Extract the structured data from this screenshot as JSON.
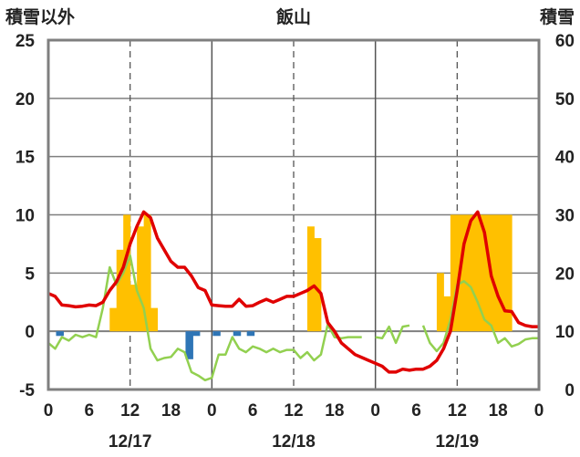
{
  "chart_data": {
    "type": "bar+line",
    "title": "飯山",
    "left_axis_label": "積雪以外",
    "right_axis_label": "積雪",
    "left_ylim": [
      -5,
      25
    ],
    "left_yticks": [
      -5,
      0,
      5,
      10,
      15,
      20,
      25
    ],
    "right_ylim": [
      0,
      60
    ],
    "right_yticks": [
      0,
      10,
      20,
      30,
      40,
      50,
      60
    ],
    "x_range_hours": [
      0,
      72
    ],
    "x_tick_labels": [
      "0",
      "6",
      "12",
      "18",
      "0",
      "6",
      "12",
      "18",
      "0",
      "6",
      "12",
      "18",
      "0"
    ],
    "day_labels": [
      "12/17",
      "12/18",
      "12/19"
    ],
    "grid": "dashed vertical lines at 12h, solid vertical lines at day boundaries, horizontal gridlines",
    "precip_bars": {
      "color": "#FFC000",
      "axis": "left",
      "hours": [
        9,
        10,
        11,
        12,
        13,
        14,
        15,
        16,
        38,
        39,
        40,
        57,
        58,
        59,
        60,
        61,
        62,
        63,
        64,
        65,
        66,
        67,
        68
      ],
      "values": [
        2,
        7,
        10,
        4,
        9,
        10,
        2,
        0,
        9,
        8,
        0,
        5,
        3,
        10,
        10,
        10,
        10,
        10,
        10,
        10,
        10,
        10,
        0
      ]
    },
    "negative_markers": {
      "color": "#2E75B6",
      "axis": "left",
      "hours": [
        1,
        20,
        21,
        24,
        27,
        29
      ],
      "values": [
        -0.4,
        -2.4,
        -0.4,
        -0.4,
        -0.4,
        -0.4
      ]
    },
    "temperature_line": {
      "color": "#92D050",
      "axis": "left",
      "x": [
        0,
        1,
        2,
        3,
        4,
        5,
        6,
        7,
        8,
        9,
        10,
        11,
        12,
        13,
        14,
        15,
        16,
        17,
        18,
        19,
        20,
        21,
        22,
        23,
        24,
        25,
        26,
        27,
        28,
        29,
        30,
        31,
        32,
        33,
        34,
        35,
        36,
        37,
        38,
        39,
        40,
        41,
        42,
        43,
        44,
        45,
        46,
        47,
        48,
        49,
        50,
        51,
        52,
        53,
        54,
        55,
        56,
        57,
        58,
        59,
        60,
        61,
        62,
        63,
        64,
        65,
        66,
        67,
        68,
        69,
        70,
        71,
        72
      ],
      "y": [
        -1,
        -1.5,
        -0.5,
        -0.8,
        -0.3,
        -0.5,
        -0.3,
        -0.5,
        2,
        5.5,
        4,
        5,
        6.5,
        3.5,
        2,
        -1.5,
        -2.5,
        -2.3,
        -2.2,
        -1.5,
        -1.8,
        -3.5,
        -3.8,
        -4.2,
        -4,
        -2,
        -2,
        -0.5,
        -1.5,
        -1.8,
        -1.3,
        -1.5,
        -1.8,
        -1.5,
        -1.8,
        -1.6,
        -1.6,
        -2.3,
        -1.8,
        -2.5,
        -2,
        0.6,
        -0.5,
        -0.6,
        -0.5,
        -0.5,
        -0.5,
        null,
        -0.5,
        -0.6,
        0.4,
        -1,
        0.4,
        0.5,
        null,
        0.5,
        -1,
        -1.7,
        -1,
        1,
        4,
        4.3,
        3.8,
        2.5,
        1,
        0.5,
        -1,
        -0.6,
        -1.3,
        -1.1,
        -0.7,
        -0.6,
        -0.6
      ]
    },
    "snow_depth_line": {
      "color": "#E00000",
      "axis": "right",
      "x": [
        0,
        1,
        2,
        3,
        4,
        5,
        6,
        7,
        8,
        9,
        10,
        11,
        12,
        13,
        14,
        15,
        16,
        17,
        18,
        19,
        20,
        21,
        22,
        23,
        24,
        25,
        26,
        27,
        28,
        29,
        30,
        31,
        32,
        33,
        34,
        35,
        36,
        37,
        38,
        39,
        40,
        41,
        42,
        43,
        44,
        45,
        46,
        47,
        48,
        49,
        50,
        51,
        52,
        53,
        54,
        55,
        56,
        57,
        58,
        59,
        60,
        61,
        62,
        63,
        64,
        65,
        66,
        67,
        68,
        69,
        70,
        71,
        72
      ],
      "y": [
        16.5,
        16,
        14.5,
        14.4,
        14.2,
        14.3,
        14.5,
        14.4,
        15,
        17,
        18.5,
        21,
        25,
        28,
        30.5,
        29.5,
        26,
        24,
        22,
        21,
        21,
        19.5,
        17.5,
        17,
        14.5,
        14.4,
        14.3,
        14.3,
        15.5,
        14.3,
        14.4,
        15,
        15.5,
        15,
        15.5,
        16,
        16,
        16.5,
        17,
        17.8,
        16.5,
        11.5,
        10,
        8,
        7,
        6,
        5.5,
        5,
        4.5,
        4,
        3,
        3,
        3.5,
        3.3,
        3.5,
        3.5,
        4,
        5,
        7,
        10,
        17,
        25,
        29,
        30.5,
        27,
        19.5,
        16,
        13.5,
        13.4,
        11.5,
        11,
        10.8,
        10.8
      ]
    },
    "baseline_color": "#7030A0"
  }
}
